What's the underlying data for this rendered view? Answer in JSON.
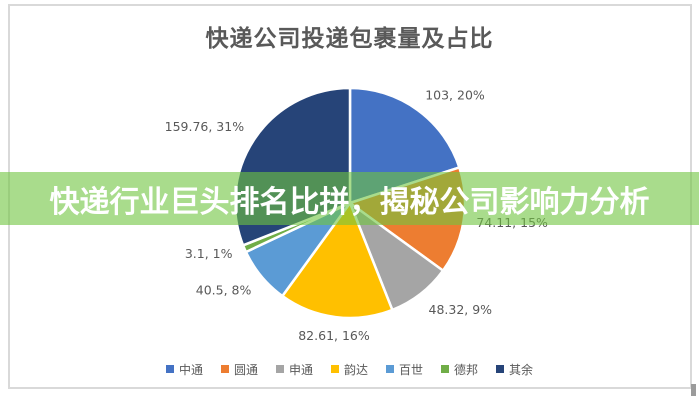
{
  "window": {
    "background_color": "#FFFFFF",
    "frame_border_color": "#D9D9D9"
  },
  "chart_data": {
    "type": "pie",
    "title": "快递公司投递包裹量及占比",
    "title_color": "#595959",
    "legend_position": "bottom",
    "grid": false,
    "categories": [
      "中通",
      "圆通",
      "申通",
      "韵达",
      "百世",
      "德邦",
      "其余"
    ],
    "values": [
      103,
      74.11,
      48.32,
      82.61,
      40.5,
      3.1,
      159.76
    ],
    "percents": [
      20,
      15,
      9,
      16,
      8,
      1,
      31
    ],
    "colors": [
      "#4472C4",
      "#ED7D31",
      "#A5A5A5",
      "#FFC000",
      "#5B9BD5",
      "#70AD47",
      "#264478"
    ],
    "data_labels": [
      "103, 20%",
      "74.11, 15%",
      "48.32, 9%",
      "82.61, 16%",
      "40.5, 8%",
      "3.1, 1%",
      "159.76, 31%"
    ],
    "data_label_color": "#595959",
    "slice_border_color": "#FFFFFF"
  },
  "banner": {
    "text": "快递行业巨头排名比拼，揭秘公司影响力分析",
    "background_color": "#70C53F",
    "background_opacity": 0.6,
    "text_color": "#FFFFFF"
  }
}
